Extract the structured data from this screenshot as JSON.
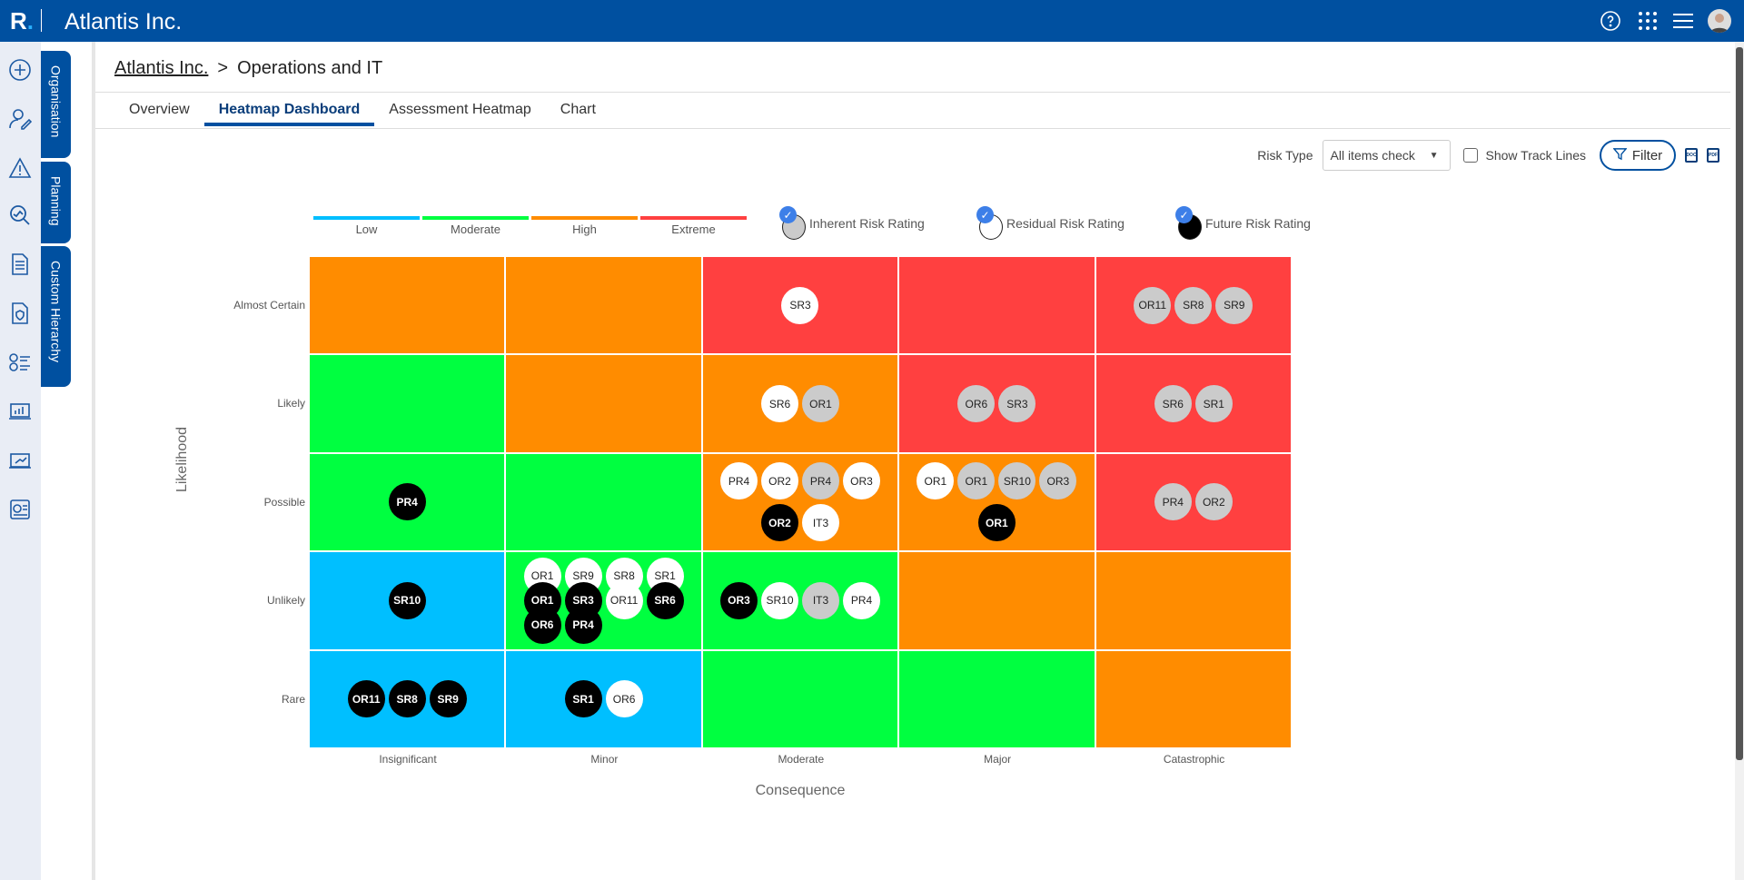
{
  "header": {
    "logo": "R",
    "app_title": "Atlantis Inc."
  },
  "side_tabs": [
    "Organisation",
    "Planning",
    "Custom Hierarchy"
  ],
  "breadcrumb": {
    "root": "Atlantis Inc.",
    "sep": ">",
    "current": "Operations and IT"
  },
  "tabs": [
    "Overview",
    "Heatmap Dashboard",
    "Assessment Heatmap",
    "Chart"
  ],
  "toolbar": {
    "risk_type_label": "Risk Type",
    "risk_type_value": "All items check",
    "show_track_lines": "Show Track Lines",
    "filter": "Filter",
    "doc": "DOC",
    "pdf": "PDF"
  },
  "legend": {
    "bands": [
      {
        "label": "Low",
        "color": "#00bfff"
      },
      {
        "label": "Moderate",
        "color": "#00ff40"
      },
      {
        "label": "High",
        "color": "#ff8c00"
      },
      {
        "label": "Extreme",
        "color": "#ff4040"
      }
    ],
    "ratings": [
      "Inherent Risk Rating",
      "Residual Risk Rating",
      "Future Risk Rating"
    ]
  },
  "chart_data": {
    "type": "heatmap",
    "xlabel": "Consequence",
    "ylabel": "Likelihood",
    "columns": [
      "Insignificant",
      "Minor",
      "Moderate",
      "Major",
      "Catastrophic"
    ],
    "rows": [
      "Almost Certain",
      "Likely",
      "Possible",
      "Unlikely",
      "Rare"
    ],
    "cell_levels": [
      [
        "High",
        "High",
        "Extreme",
        "Extreme",
        "Extreme"
      ],
      [
        "Moderate",
        "High",
        "High",
        "Extreme",
        "Extreme"
      ],
      [
        "Moderate",
        "Moderate",
        "High",
        "High",
        "Extreme"
      ],
      [
        "Low",
        "Moderate",
        "Moderate",
        "High",
        "High"
      ],
      [
        "Low",
        "Low",
        "Moderate",
        "Moderate",
        "High"
      ]
    ],
    "bubble_key": {
      "i": "Inherent",
      "r": "Residual",
      "f": "Future"
    },
    "cells": [
      [
        [],
        [],
        [
          [
            [
              "SR3",
              "r"
            ]
          ]
        ],
        [],
        [
          [
            [
              "OR11",
              "i"
            ],
            [
              "SR8",
              "i"
            ],
            [
              "SR9",
              "i"
            ]
          ]
        ]
      ],
      [
        [],
        [],
        [
          [
            [
              "SR6",
              "r"
            ],
            [
              "OR1",
              "i"
            ]
          ]
        ],
        [
          [
            [
              "OR6",
              "i"
            ],
            [
              "SR3",
              "i"
            ]
          ]
        ],
        [
          [
            [
              "SR6",
              "i"
            ],
            [
              "SR1",
              "i"
            ]
          ]
        ]
      ],
      [
        [
          [
            [
              "PR4",
              "f"
            ]
          ]
        ],
        [],
        [
          [
            [
              "PR4",
              "r"
            ],
            [
              "OR2",
              "r"
            ],
            [
              "PR4",
              "i"
            ],
            [
              "OR3",
              "r"
            ]
          ],
          [
            [
              "OR2",
              "f"
            ],
            [
              "IT3",
              "r"
            ]
          ]
        ],
        [
          [
            [
              "OR1",
              "r"
            ],
            [
              "OR1",
              "i"
            ],
            [
              "SR10",
              "i"
            ],
            [
              "OR3",
              "i"
            ]
          ],
          [
            [
              "OR1",
              "f"
            ]
          ]
        ],
        [
          [
            [
              "PR4",
              "i"
            ],
            [
              "OR2",
              "i"
            ]
          ]
        ]
      ],
      [
        [
          [
            [
              "SR10",
              "f"
            ]
          ]
        ],
        [
          [
            [
              "OR1",
              "r"
            ],
            [
              "SR9",
              "r"
            ],
            [
              "SR8",
              "r"
            ],
            [
              "SR1",
              "r"
            ]
          ],
          [
            [
              "OR1",
              "f"
            ],
            [
              "SR3",
              "f"
            ],
            [
              "OR11",
              "r"
            ],
            [
              "SR6",
              "f"
            ]
          ],
          [
            [
              "OR6",
              "f"
            ],
            [
              "PR4",
              "f"
            ]
          ]
        ],
        [
          [
            [
              "OR3",
              "f"
            ],
            [
              "SR10",
              "r"
            ],
            [
              "IT3",
              "i"
            ],
            [
              "PR4",
              "r"
            ]
          ]
        ],
        [],
        []
      ],
      [
        [
          [
            [
              "OR11",
              "f"
            ],
            [
              "SR8",
              "f"
            ],
            [
              "SR9",
              "f"
            ]
          ]
        ],
        [
          [
            [
              "SR1",
              "f"
            ],
            [
              "OR6",
              "r"
            ]
          ]
        ],
        [],
        [],
        []
      ]
    ]
  }
}
